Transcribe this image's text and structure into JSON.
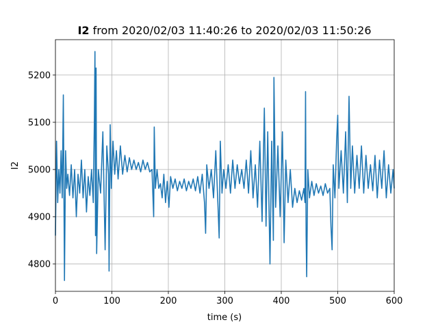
{
  "chart_data": {
    "type": "line",
    "title_series": "I2",
    "title": "from 2020/02/03 11:40:26 to 2020/02/03 11:50:26",
    "xlabel": "time (s)",
    "ylabel": "I2",
    "xlim": [
      0,
      600
    ],
    "xticks": [
      0,
      100,
      200,
      300,
      400,
      500,
      600
    ],
    "ylim": [
      4742,
      5275
    ],
    "yticks": [
      4800,
      4900,
      5000,
      5100,
      5200
    ],
    "grid": true,
    "x": [
      0,
      2,
      4,
      6,
      8,
      10,
      12,
      14,
      16,
      18,
      20,
      22,
      25,
      28,
      31,
      34,
      37,
      40,
      43,
      46,
      49,
      52,
      55,
      58,
      61,
      64,
      67,
      69,
      70,
      71,
      72,
      73,
      76,
      80,
      84,
      88,
      91,
      94,
      95,
      97,
      99,
      102,
      105,
      108,
      111,
      115,
      119,
      123,
      127,
      131,
      135,
      139,
      143,
      147,
      151,
      155,
      159,
      163,
      167,
      171,
      174,
      175,
      177,
      180,
      183,
      186,
      189,
      192,
      195,
      198,
      201,
      204,
      208,
      212,
      216,
      220,
      224,
      228,
      232,
      236,
      240,
      244,
      248,
      252,
      256,
      260,
      264,
      266,
      268,
      272,
      276,
      280,
      284,
      288,
      290,
      292,
      295,
      298,
      302,
      306,
      310,
      314,
      318,
      322,
      326,
      330,
      334,
      338,
      342,
      346,
      350,
      354,
      358,
      362,
      366,
      370,
      373,
      376,
      380,
      383,
      386,
      387,
      390,
      394,
      398,
      402,
      405,
      408,
      412,
      416,
      420,
      424,
      428,
      432,
      436,
      440,
      442,
      443,
      444,
      445,
      447,
      450,
      454,
      458,
      462,
      466,
      470,
      474,
      478,
      482,
      486,
      488,
      490,
      492,
      495,
      498,
      500,
      502,
      506,
      510,
      514,
      517,
      520,
      523,
      526,
      530,
      534,
      538,
      542,
      546,
      550,
      554,
      558,
      562,
      566,
      570,
      574,
      578,
      582,
      586,
      590,
      594,
      598,
      600
    ],
    "series": [
      {
        "name": "I2",
        "color": "#1f77b4",
        "values": [
          4860,
          5060,
          4930,
          5000,
          4950,
          5040,
          4940,
          5158,
          4765,
          5040,
          4960,
          4990,
          4945,
          5010,
          4940,
          5000,
          4900,
          4990,
          4950,
          5020,
          4940,
          5000,
          4910,
          4985,
          4945,
          5000,
          4930,
          5110,
          5250,
          4860,
          5215,
          4822,
          5000,
          4950,
          5080,
          4830,
          5050,
          4990,
          4785,
          5095,
          4960,
          5060,
          4990,
          5040,
          4980,
          5050,
          4990,
          5030,
          4995,
          5025,
          5000,
          5020,
          5000,
          5015,
          4995,
          5020,
          5000,
          5015,
          4995,
          5000,
          4900,
          5090,
          4960,
          5000,
          4960,
          4970,
          4940,
          4990,
          4930,
          4975,
          4920,
          4985,
          4960,
          4980,
          4955,
          4975,
          4960,
          4980,
          4955,
          4975,
          4960,
          4980,
          4955,
          4985,
          4950,
          4990,
          4930,
          4865,
          5010,
          4960,
          5000,
          4940,
          5040,
          4920,
          4855,
          5060,
          4950,
          5000,
          4960,
          5010,
          4950,
          5020,
          4960,
          5010,
          4970,
          5000,
          4960,
          5020,
          4950,
          5040,
          4940,
          5010,
          4920,
          5060,
          4890,
          5130,
          4880,
          5080,
          4800,
          5060,
          4850,
          5195,
          4920,
          5050,
          4900,
          5080,
          4845,
          5020,
          4930,
          5000,
          4920,
          4960,
          4930,
          4955,
          4935,
          4960,
          4930,
          5165,
          4860,
          4773,
          5000,
          4940,
          4975,
          4945,
          4970,
          4950,
          4965,
          4945,
          4970,
          4950,
          4960,
          4880,
          4830,
          5010,
          4940,
          5060,
          5115,
          4960,
          5040,
          4950,
          5080,
          4930,
          5155,
          4960,
          5050,
          4950,
          5030,
          4960,
          5050,
          4950,
          5030,
          4960,
          5010,
          4955,
          5030,
          4940,
          5020,
          4960,
          5040,
          4940,
          5010,
          4950,
          5000,
          4960
        ]
      }
    ]
  }
}
